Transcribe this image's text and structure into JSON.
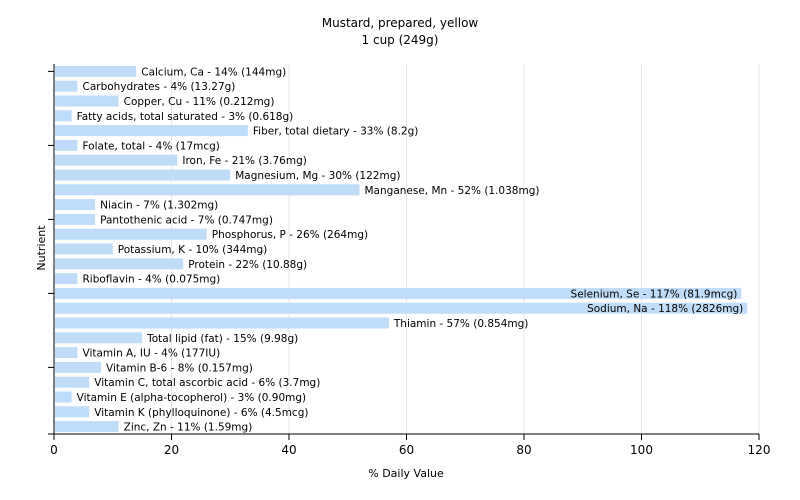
{
  "chart_data": {
    "type": "bar",
    "orientation": "horizontal",
    "title": "Mustard, prepared, yellow",
    "subtitle": "1 cup (249g)",
    "xlabel": "% Daily Value",
    "ylabel": "Nutrient",
    "xlim": [
      0,
      120
    ],
    "xticks": [
      0,
      20,
      40,
      60,
      80,
      100,
      120
    ],
    "grid": "vertical",
    "bar_color": "#bfdcf8",
    "bars": [
      {
        "category": "Calcium, Ca",
        "value": 14,
        "label": "Calcium, Ca - 14% (144mg)"
      },
      {
        "category": "Carbohydrates",
        "value": 4,
        "label": "Carbohydrates - 4% (13.27g)"
      },
      {
        "category": "Copper, Cu",
        "value": 11,
        "label": "Copper, Cu - 11% (0.212mg)"
      },
      {
        "category": "Fatty acids, total saturated",
        "value": 3,
        "label": "Fatty acids, total saturated - 3% (0.618g)"
      },
      {
        "category": "Fiber, total dietary",
        "value": 33,
        "label": "Fiber, total dietary - 33% (8.2g)"
      },
      {
        "category": "Folate, total",
        "value": 4,
        "label": "Folate, total - 4% (17mcg)"
      },
      {
        "category": "Iron, Fe",
        "value": 21,
        "label": "Iron, Fe - 21% (3.76mg)"
      },
      {
        "category": "Magnesium, Mg",
        "value": 30,
        "label": "Magnesium, Mg - 30% (122mg)"
      },
      {
        "category": "Manganese, Mn",
        "value": 52,
        "label": "Manganese, Mn - 52% (1.038mg)"
      },
      {
        "category": "Niacin",
        "value": 7,
        "label": "Niacin - 7% (1.302mg)"
      },
      {
        "category": "Pantothenic acid",
        "value": 7,
        "label": "Pantothenic acid - 7% (0.747mg)"
      },
      {
        "category": "Phosphorus, P",
        "value": 26,
        "label": "Phosphorus, P - 26% (264mg)"
      },
      {
        "category": "Potassium, K",
        "value": 10,
        "label": "Potassium, K - 10% (344mg)"
      },
      {
        "category": "Protein",
        "value": 22,
        "label": "Protein - 22% (10.88g)"
      },
      {
        "category": "Riboflavin",
        "value": 4,
        "label": "Riboflavin - 4% (0.075mg)"
      },
      {
        "category": "Selenium, Se",
        "value": 117,
        "label": "Selenium, Se - 117% (81.9mcg)"
      },
      {
        "category": "Sodium, Na",
        "value": 118,
        "label": "Sodium, Na - 118% (2826mg)"
      },
      {
        "category": "Thiamin",
        "value": 57,
        "label": "Thiamin - 57% (0.854mg)"
      },
      {
        "category": "Total lipid (fat)",
        "value": 15,
        "label": "Total lipid (fat) - 15% (9.98g)"
      },
      {
        "category": "Vitamin A, IU",
        "value": 4,
        "label": "Vitamin A, IU - 4% (177IU)"
      },
      {
        "category": "Vitamin B-6",
        "value": 8,
        "label": "Vitamin B-6 - 8% (0.157mg)"
      },
      {
        "category": "Vitamin C, total ascorbic acid",
        "value": 6,
        "label": "Vitamin C, total ascorbic acid - 6% (3.7mg)"
      },
      {
        "category": "Vitamin E (alpha-tocopherol)",
        "value": 3,
        "label": "Vitamin E (alpha-tocopherol) - 3% (0.90mg)"
      },
      {
        "category": "Vitamin K (phylloquinone)",
        "value": 6,
        "label": "Vitamin K (phylloquinone) - 6% (4.5mcg)"
      },
      {
        "category": "Zinc, Zn",
        "value": 11,
        "label": "Zinc, Zn - 11% (1.59mg)"
      }
    ]
  }
}
